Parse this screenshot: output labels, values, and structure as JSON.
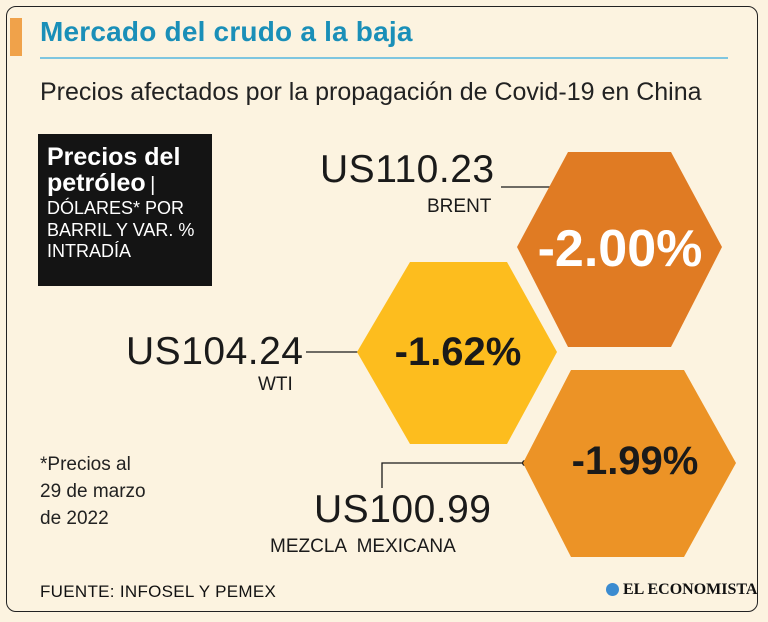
{
  "header": {
    "title": "Mercado del crudo a la baja",
    "subtitle": "Precios afectados por la propagación de Covid-19 en China"
  },
  "legend_box": {
    "line1": "Precios del",
    "line2": "petróleo",
    "separator": "|",
    "line3": "DÓLARES* POR",
    "line4": "BARRIL Y VAR. %",
    "line5": "INTRADÍA"
  },
  "note": {
    "line1": "*Precios al",
    "line2": "29 de marzo",
    "line3": "de 2022"
  },
  "footer": {
    "source": "FUENTE: INFOSEL Y PEMEX",
    "logo": "EL ECONOMISTA"
  },
  "colors": {
    "brent": "#e07b23",
    "wti": "#fdbd1e",
    "mezcla": "#ec9326",
    "title": "#1a8fb8",
    "accent": "#f0a24a"
  },
  "chart_data": {
    "type": "table",
    "currency": "US",
    "items": [
      {
        "name": "BRENT",
        "price": "110.23",
        "change": "-2.00%",
        "price_value": 110.23,
        "change_value": -2.0
      },
      {
        "name": "WTI",
        "price": "104.24",
        "change": "-1.62%",
        "price_value": 104.24,
        "change_value": -1.62
      },
      {
        "name": "MEZCLA  MEXICANA",
        "price": "100.99",
        "change": "-1.99%",
        "price_value": 100.99,
        "change_value": -1.99
      }
    ]
  }
}
